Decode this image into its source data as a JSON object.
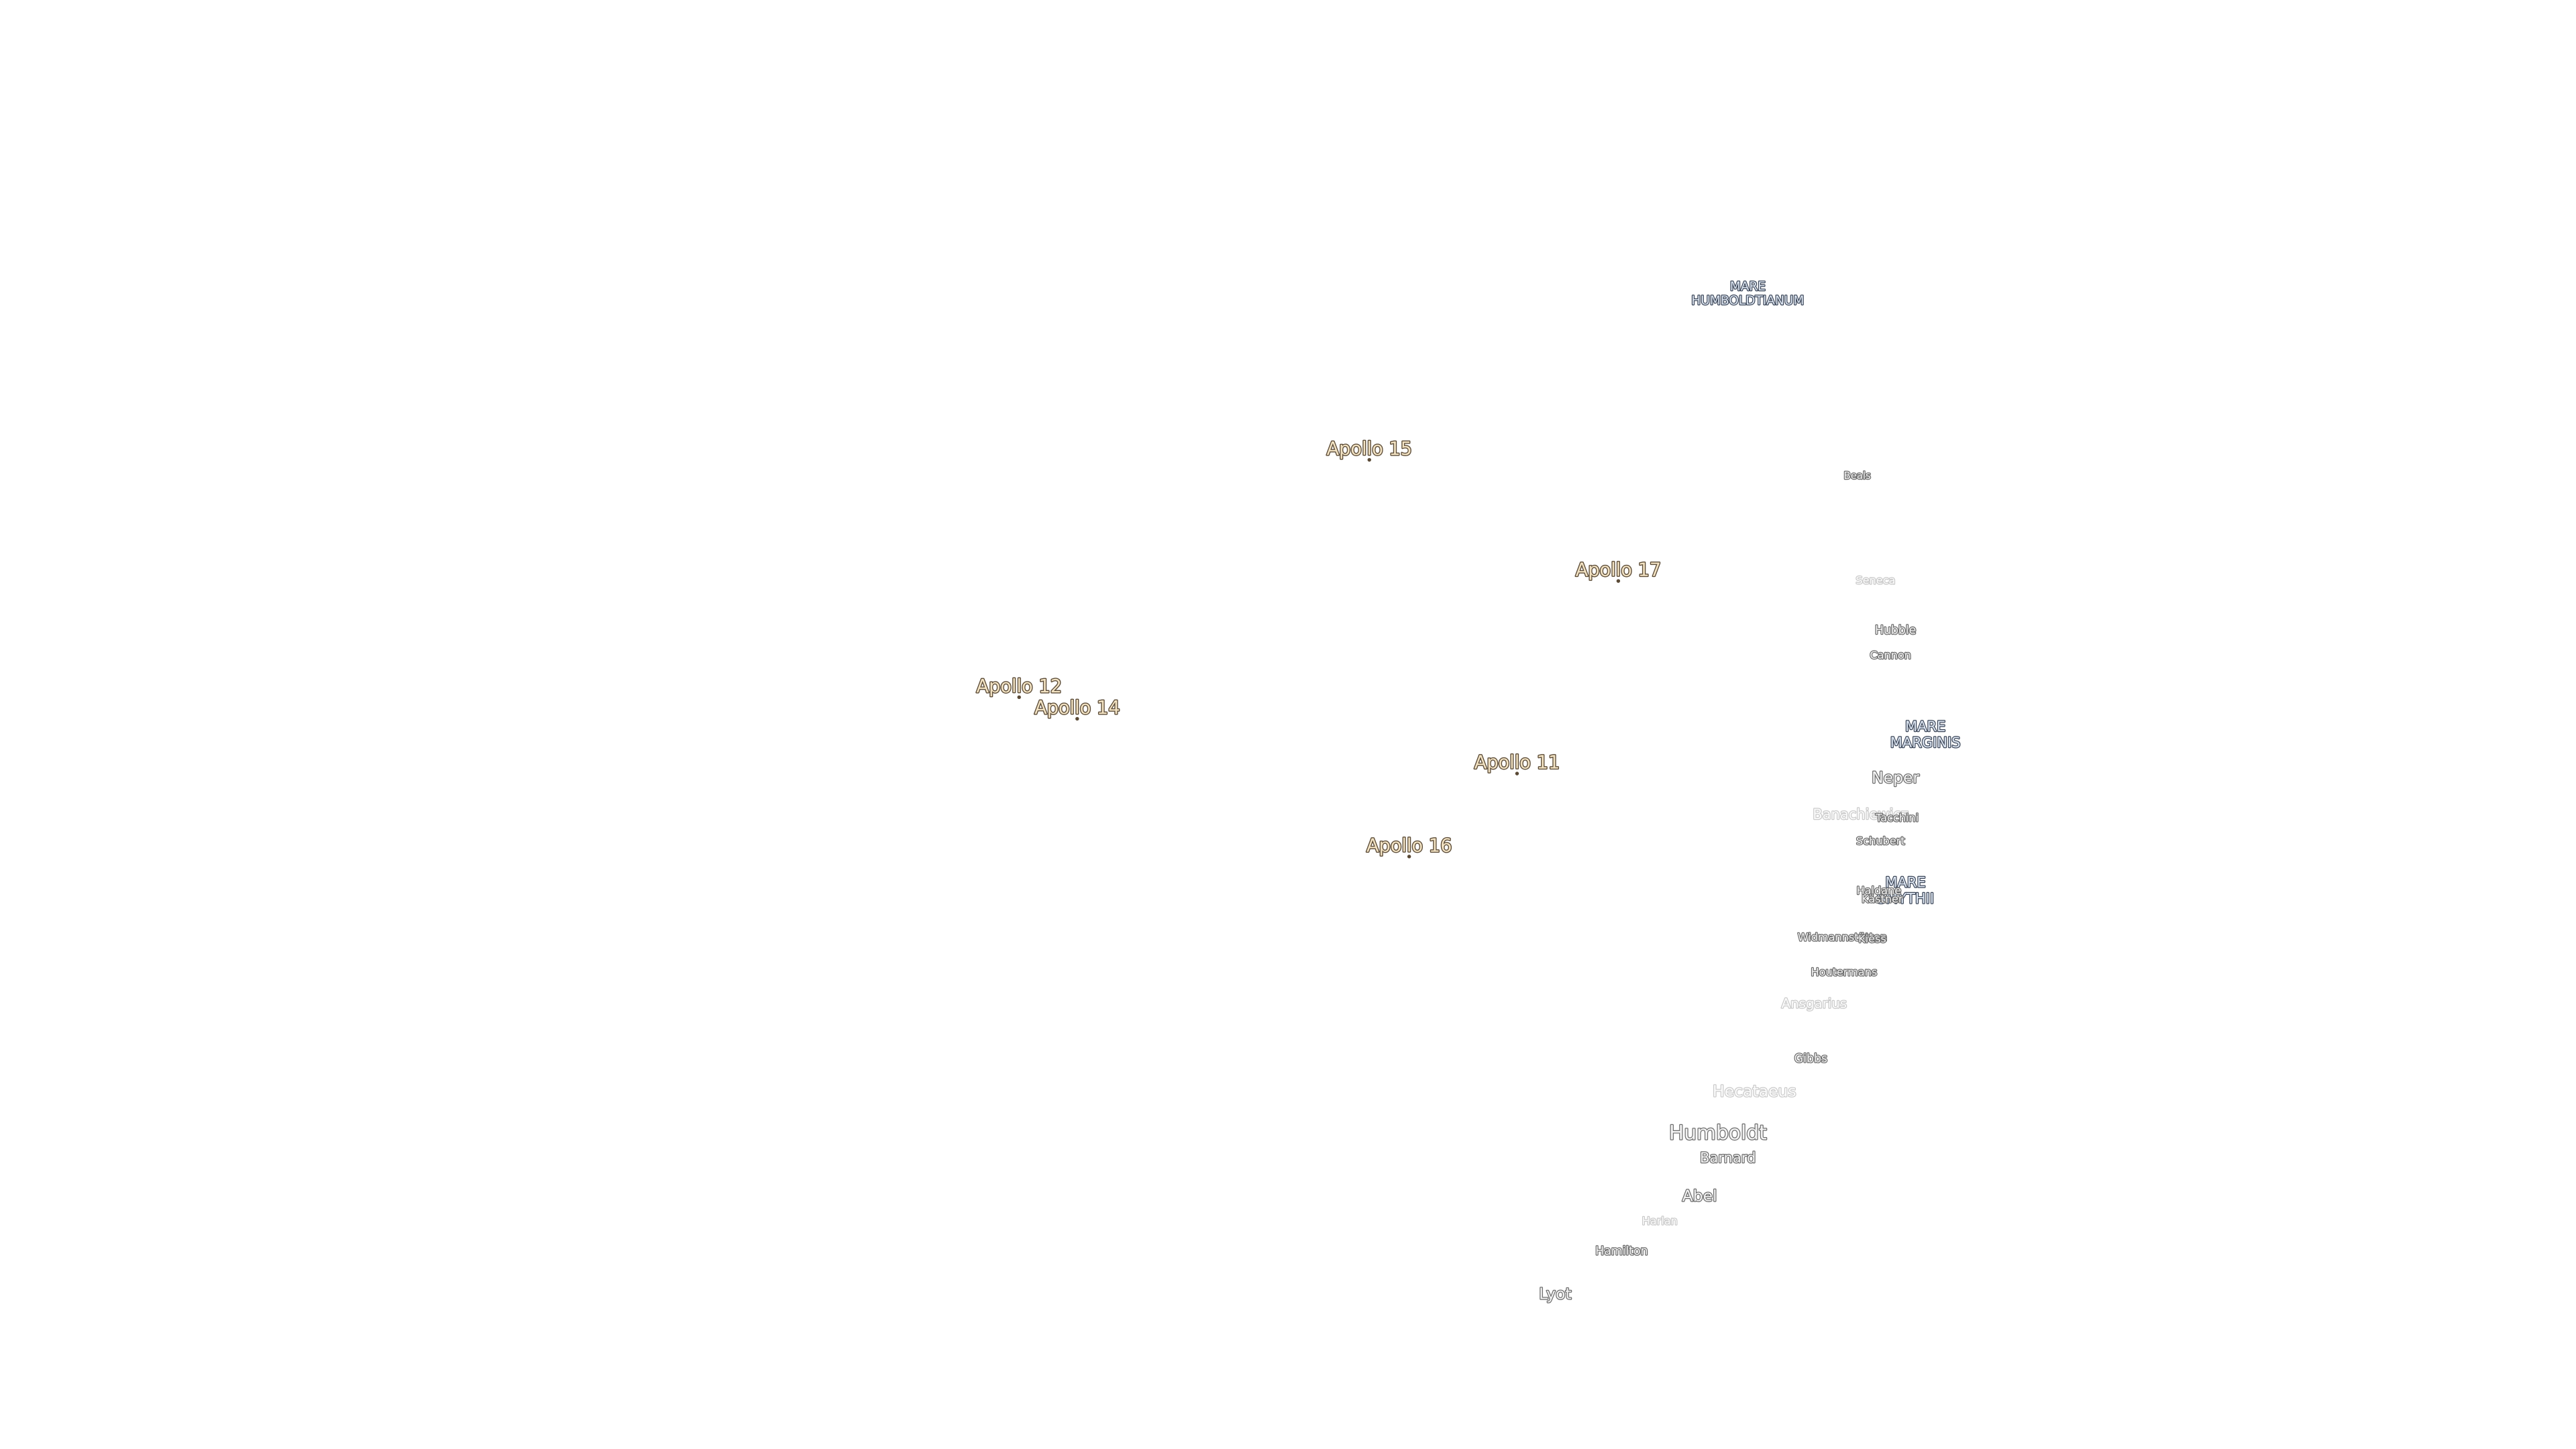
{
  "labels": [
    {
      "lines": [
        "MARE",
        "HUMBOLDTIANUM"
      ]
    },
    {
      "text": "Apollo 15"
    },
    {
      "text": "Beals"
    },
    {
      "text": "Apollo 17"
    },
    {
      "text": "Seneca"
    },
    {
      "text": "Hubble"
    },
    {
      "text": "Cannon"
    },
    {
      "text": "Apollo 12"
    },
    {
      "text": "Apollo 14"
    },
    {
      "lines": [
        "MARE",
        "MARGINIS"
      ]
    },
    {
      "text": "Apollo 11"
    },
    {
      "text": "Neper"
    },
    {
      "text": "Banachiewicz"
    },
    {
      "text": "Tacchini"
    },
    {
      "text": "Schubert"
    },
    {
      "text": "Apollo 16"
    },
    {
      "lines": [
        "MARE",
        "SMYTHII"
      ]
    },
    {
      "text": "Haldane"
    },
    {
      "text": "Kästner"
    },
    {
      "text": "Widmannstätten"
    },
    {
      "text": "Kiess"
    },
    {
      "text": "Houtermans"
    },
    {
      "text": "Ansgarius"
    },
    {
      "text": "Gibbs"
    },
    {
      "text": "Hecataeus"
    },
    {
      "text": "Humboldt"
    },
    {
      "text": "Barnard"
    },
    {
      "text": "Abel"
    },
    {
      "text": "Harlan"
    },
    {
      "text": "Hamilton"
    },
    {
      "text": "Lyot"
    }
  ]
}
